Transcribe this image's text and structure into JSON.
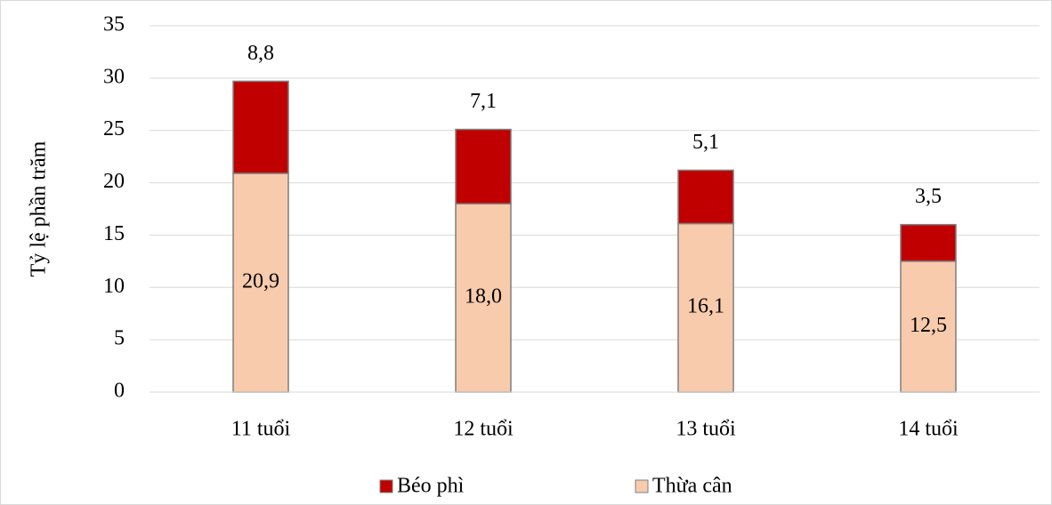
{
  "chart_data": {
    "type": "stacked_bar",
    "y_label": "Tỷ lệ phần trăm",
    "categories": [
      "11 tuổi",
      "12 tuổi",
      "13 tuổi",
      "14 tuổi"
    ],
    "series": [
      {
        "name": "Thừa cân",
        "color": "#F8CBAD",
        "values": [
          20.9,
          18.0,
          16.1,
          12.5
        ],
        "value_labels": [
          "20,9",
          "18,0",
          "16,1",
          "12,5"
        ]
      },
      {
        "name": "Béo phì",
        "color": "#C00000",
        "values": [
          8.8,
          7.1,
          5.1,
          3.5
        ],
        "value_labels": [
          "8,8",
          "7,1",
          "5,1",
          "3,5"
        ]
      }
    ],
    "ylim": [
      0,
      35
    ],
    "yticks": [
      0,
      5,
      10,
      15,
      20,
      25,
      30,
      35
    ],
    "grid": true,
    "legend": "bottom"
  }
}
